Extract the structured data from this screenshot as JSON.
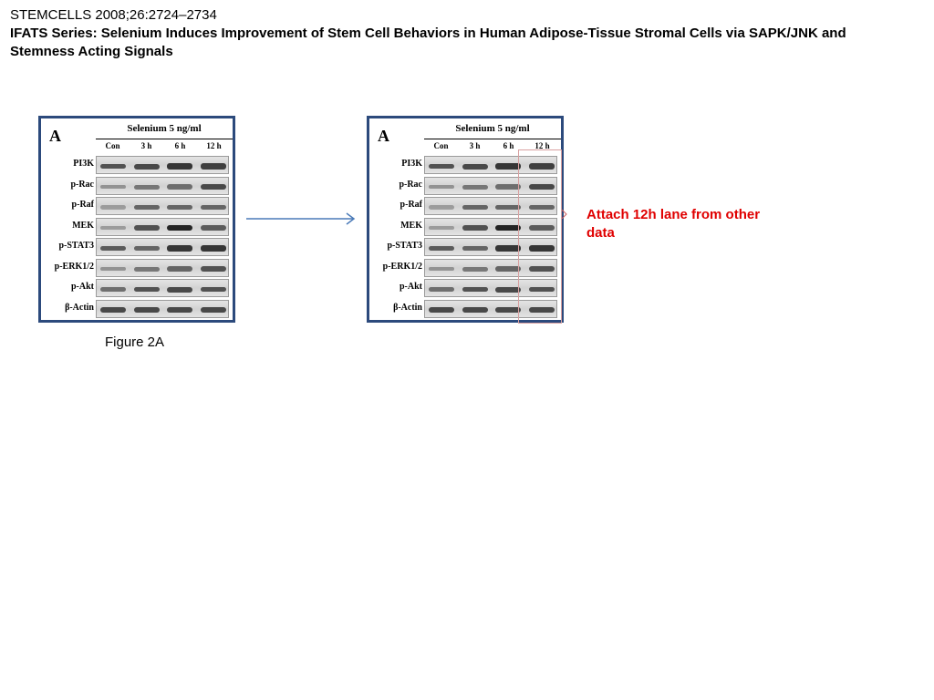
{
  "citation": "STEMCELLS 2008;26:2724–2734",
  "title": "IFATS Series: Selenium Induces Improvement of Stem Cell Behaviors in Human Adipose-Tissue Stromal Cells via SAPK/JNK and Stemness Acting Signals",
  "caption": "Figure 2A",
  "note": "Attach 12h lane from other data",
  "blot": {
    "panel_letter": "A",
    "treatment": "Selenium 5 ng/ml",
    "lanes": [
      "Con",
      "3 h",
      "6 h",
      "12 h"
    ],
    "rows": [
      "PI3K",
      "p-Rac",
      "p-Raf",
      "MEK",
      "p-STAT3",
      "p-ERK1/2",
      "p-Akt",
      "β-Actin"
    ],
    "band_intensity": [
      [
        0.7,
        0.75,
        0.85,
        0.8
      ],
      [
        0.35,
        0.5,
        0.55,
        0.75
      ],
      [
        0.3,
        0.6,
        0.6,
        0.6
      ],
      [
        0.3,
        0.7,
        0.95,
        0.65
      ],
      [
        0.65,
        0.6,
        0.85,
        0.85
      ],
      [
        0.35,
        0.5,
        0.6,
        0.7
      ],
      [
        0.55,
        0.7,
        0.75,
        0.7
      ],
      [
        0.75,
        0.75,
        0.75,
        0.75
      ]
    ]
  }
}
